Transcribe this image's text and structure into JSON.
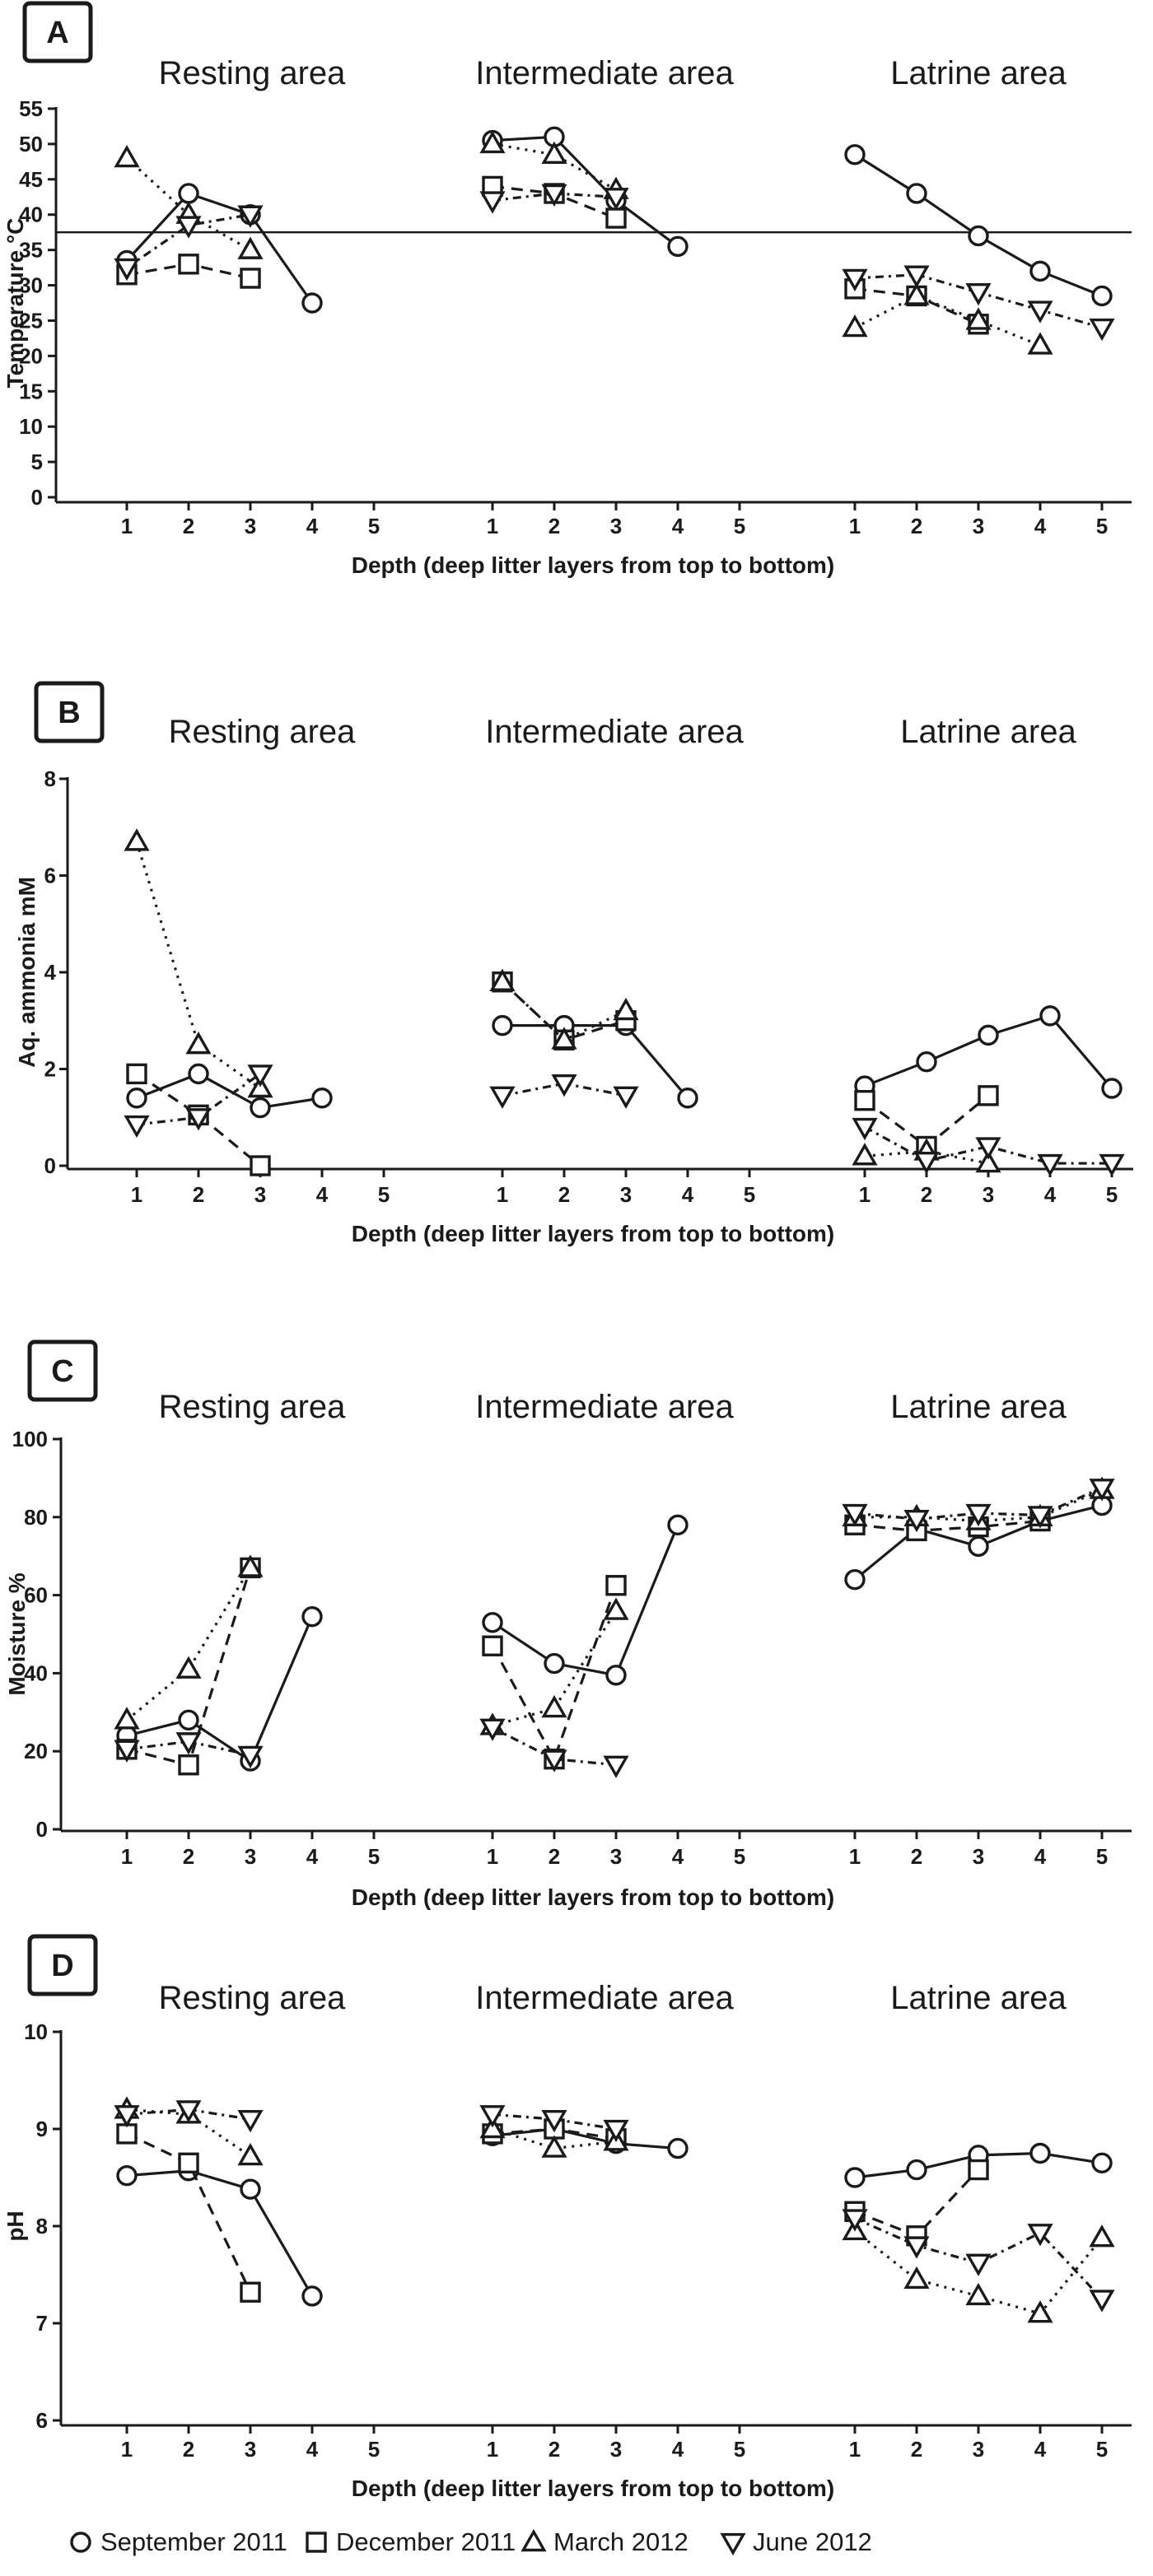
{
  "legend": [
    {
      "key": "sep",
      "label": "September 2011",
      "marker": "circle",
      "dash": ""
    },
    {
      "key": "dec",
      "label": "December 2011",
      "marker": "square",
      "dash": "14 9"
    },
    {
      "key": "mar",
      "label": "March 2012",
      "marker": "triangle-up",
      "dash": "3 7"
    },
    {
      "key": "jun",
      "label": "June 2012",
      "marker": "triangle-down",
      "dash": "10 6 3 6"
    }
  ],
  "chart_data": [
    {
      "type": "line",
      "panel": "A",
      "ylabel": "Temperature °C",
      "xlabel": "Depth (deep litter layers from top to bottom)",
      "ylim": [
        0,
        55
      ],
      "yticks": [
        0,
        5,
        10,
        15,
        20,
        25,
        30,
        35,
        40,
        45,
        50,
        55
      ],
      "reference_line": 37.5,
      "regions": [
        {
          "title": "Resting area",
          "x_ticks": [
            "1",
            "2",
            "3",
            "4",
            "5"
          ],
          "series": [
            {
              "name": "September 2011",
              "key": "sep",
              "x": [
                1,
                2,
                3,
                4
              ],
              "y": [
                33.5,
                43,
                40,
                27.5
              ]
            },
            {
              "name": "December 2011",
              "key": "dec",
              "x": [
                1,
                2,
                3
              ],
              "y": [
                31.5,
                33,
                31
              ]
            },
            {
              "name": "March 2012",
              "key": "mar",
              "x": [
                1,
                2,
                3
              ],
              "y": [
                48,
                40,
                35
              ]
            },
            {
              "name": "June 2012",
              "key": "jun",
              "x": [
                1,
                2,
                3
              ],
              "y": [
                32.5,
                38.5,
                40
              ]
            }
          ]
        },
        {
          "title": "Intermediate area",
          "x_ticks": [
            "1",
            "2",
            "3",
            "4",
            "5"
          ],
          "series": [
            {
              "name": "September 2011",
              "key": "sep",
              "x": [
                1,
                2,
                3,
                4
              ],
              "y": [
                50.5,
                51,
                42,
                35.5
              ]
            },
            {
              "name": "December 2011",
              "key": "dec",
              "x": [
                1,
                2,
                3
              ],
              "y": [
                44,
                43,
                39.5
              ]
            },
            {
              "name": "March 2012",
              "key": "mar",
              "x": [
                1,
                2,
                3
              ],
              "y": [
                50,
                48.5,
                43.5
              ]
            },
            {
              "name": "June 2012",
              "key": "jun",
              "x": [
                1,
                2,
                3
              ],
              "y": [
                42,
                43,
                42.5
              ]
            }
          ]
        },
        {
          "title": "Latrine area",
          "x_ticks": [
            "1",
            "2",
            "3",
            "4",
            "5"
          ],
          "series": [
            {
              "name": "September 2011",
              "key": "sep",
              "x": [
                1,
                2,
                3,
                4,
                5
              ],
              "y": [
                48.5,
                43,
                37,
                32,
                28.5
              ]
            },
            {
              "name": "December 2011",
              "key": "dec",
              "x": [
                1,
                2,
                3
              ],
              "y": [
                29.5,
                28.5,
                24.5
              ]
            },
            {
              "name": "March 2012",
              "key": "mar",
              "x": [
                1,
                2,
                3,
                4
              ],
              "y": [
                24,
                28.5,
                25,
                21.5
              ]
            },
            {
              "name": "June 2012",
              "key": "jun",
              "x": [
                1,
                2,
                3,
                4,
                5
              ],
              "y": [
                31,
                31.5,
                29,
                26.5,
                24
              ]
            }
          ]
        }
      ]
    },
    {
      "type": "line",
      "panel": "B",
      "ylabel": "Aq. ammonia mM",
      "xlabel": "Depth (deep litter layers from top to bottom)",
      "ylim": [
        0,
        8
      ],
      "yticks": [
        0,
        2,
        4,
        6,
        8
      ],
      "regions": [
        {
          "title": "Resting area",
          "x_ticks": [
            "1",
            "2",
            "3",
            "4",
            "5"
          ],
          "series": [
            {
              "name": "September 2011",
              "key": "sep",
              "x": [
                1,
                2,
                3,
                4
              ],
              "y": [
                1.4,
                1.9,
                1.2,
                1.4
              ]
            },
            {
              "name": "December 2011",
              "key": "dec",
              "x": [
                1,
                2,
                3
              ],
              "y": [
                1.9,
                1.05,
                0
              ]
            },
            {
              "name": "March 2012",
              "key": "mar",
              "x": [
                1,
                2,
                3
              ],
              "y": [
                6.7,
                2.5,
                1.6
              ]
            },
            {
              "name": "June 2012",
              "key": "jun",
              "x": [
                1,
                2,
                3
              ],
              "y": [
                0.85,
                1.0,
                1.9
              ]
            }
          ]
        },
        {
          "title": "Intermediate area",
          "x_ticks": [
            "1",
            "2",
            "3",
            "4",
            "5"
          ],
          "series": [
            {
              "name": "September 2011",
              "key": "sep",
              "x": [
                1,
                2,
                3,
                4
              ],
              "y": [
                2.9,
                2.9,
                2.9,
                1.4
              ]
            },
            {
              "name": "December 2011",
              "key": "dec",
              "x": [
                1,
                2,
                3
              ],
              "y": [
                3.8,
                2.6,
                3.0
              ]
            },
            {
              "name": "March 2012",
              "key": "mar",
              "x": [
                1,
                2,
                3
              ],
              "y": [
                3.8,
                2.6,
                3.2
              ]
            },
            {
              "name": "June 2012",
              "key": "jun",
              "x": [
                1,
                2,
                3
              ],
              "y": [
                1.45,
                1.7,
                1.45
              ]
            }
          ]
        },
        {
          "title": "Latrine area",
          "x_ticks": [
            "1",
            "2",
            "3",
            "4",
            "5"
          ],
          "series": [
            {
              "name": "September 2011",
              "key": "sep",
              "x": [
                1,
                2,
                3,
                4,
                5
              ],
              "y": [
                1.65,
                2.15,
                2.7,
                3.1,
                1.6
              ]
            },
            {
              "name": "December 2011",
              "key": "dec",
              "x": [
                1,
                2,
                3
              ],
              "y": [
                1.35,
                0.4,
                1.45
              ]
            },
            {
              "name": "March 2012",
              "key": "mar",
              "x": [
                1,
                2,
                3
              ],
              "y": [
                0.2,
                0.3,
                0.05
              ]
            },
            {
              "name": "June 2012",
              "key": "jun",
              "x": [
                1,
                2,
                3,
                4,
                5
              ],
              "y": [
                0.8,
                0.1,
                0.4,
                0.05,
                0.05
              ]
            }
          ]
        }
      ]
    },
    {
      "type": "line",
      "panel": "C",
      "ylabel": "Moisture %",
      "xlabel": "Depth (deep litter layers from top to bottom)",
      "ylim": [
        0,
        100
      ],
      "yticks": [
        0,
        20,
        40,
        60,
        80,
        100
      ],
      "regions": [
        {
          "title": "Resting area",
          "x_ticks": [
            "1",
            "2",
            "3",
            "4",
            "5"
          ],
          "series": [
            {
              "name": "September 2011",
              "key": "sep",
              "x": [
                1,
                2,
                3,
                4
              ],
              "y": [
                24,
                28,
                17.5,
                54.5
              ]
            },
            {
              "name": "December 2011",
              "key": "dec",
              "x": [
                1,
                2,
                3
              ],
              "y": [
                20.5,
                16.5,
                67
              ]
            },
            {
              "name": "March 2012",
              "key": "mar",
              "x": [
                1,
                2,
                3
              ],
              "y": [
                28,
                41,
                67
              ]
            },
            {
              "name": "June 2012",
              "key": "jun",
              "x": [
                1,
                2,
                3
              ],
              "y": [
                20.5,
                22.5,
                19
              ]
            }
          ]
        },
        {
          "title": "Intermediate area",
          "x_ticks": [
            "1",
            "2",
            "3",
            "4",
            "5"
          ],
          "series": [
            {
              "name": "September 2011",
              "key": "sep",
              "x": [
                1,
                2,
                3,
                4
              ],
              "y": [
                53,
                42.5,
                39.5,
                78
              ]
            },
            {
              "name": "December 2011",
              "key": "dec",
              "x": [
                1,
                2,
                3
              ],
              "y": [
                47,
                18,
                62.5
              ]
            },
            {
              "name": "March 2012",
              "key": "mar",
              "x": [
                1,
                2,
                3
              ],
              "y": [
                26.5,
                31,
                56
              ]
            },
            {
              "name": "June 2012",
              "key": "jun",
              "x": [
                1,
                2,
                3
              ],
              "y": [
                26,
                18,
                16.5
              ]
            }
          ]
        },
        {
          "title": "Latrine area",
          "x_ticks": [
            "1",
            "2",
            "3",
            "4",
            "5"
          ],
          "series": [
            {
              "name": "September 2011",
              "key": "sep",
              "x": [
                1,
                2,
                3,
                4,
                5
              ],
              "y": [
                64,
                77,
                72.5,
                79,
                83
              ]
            },
            {
              "name": "December 2011",
              "key": "dec",
              "x": [
                1,
                2,
                3,
                4
              ],
              "y": [
                78,
                76.5,
                77.5,
                79
              ]
            },
            {
              "name": "March 2012",
              "key": "mar",
              "x": [
                1,
                2,
                3,
                4,
                5
              ],
              "y": [
                80,
                80,
                79,
                80,
                87
              ]
            },
            {
              "name": "June 2012",
              "key": "jun",
              "x": [
                1,
                2,
                3,
                4,
                5
              ],
              "y": [
                81,
                79.5,
                81,
                80.5,
                87.5
              ]
            }
          ]
        }
      ]
    },
    {
      "type": "line",
      "panel": "D",
      "ylabel": "pH",
      "xlabel": "Depth (deep litter layers from top to bottom)",
      "ylim": [
        6,
        10
      ],
      "yticks": [
        6,
        7,
        8,
        9,
        10
      ],
      "regions": [
        {
          "title": "Resting area",
          "x_ticks": [
            "1",
            "2",
            "3",
            "4",
            "5"
          ],
          "series": [
            {
              "name": "September 2011",
              "key": "sep",
              "x": [
                1,
                2,
                3,
                4
              ],
              "y": [
                8.52,
                8.57,
                8.38,
                7.28
              ]
            },
            {
              "name": "December 2011",
              "key": "dec",
              "x": [
                1,
                2,
                3
              ],
              "y": [
                8.95,
                8.65,
                7.32
              ]
            },
            {
              "name": "March 2012",
              "key": "mar",
              "x": [
                1,
                2,
                3
              ],
              "y": [
                9.2,
                9.15,
                8.72
              ]
            },
            {
              "name": "June 2012",
              "key": "jun",
              "x": [
                1,
                2,
                3
              ],
              "y": [
                9.15,
                9.2,
                9.1
              ]
            }
          ]
        },
        {
          "title": "Intermediate area",
          "x_ticks": [
            "1",
            "2",
            "3",
            "4",
            "5"
          ],
          "series": [
            {
              "name": "September 2011",
              "key": "sep",
              "x": [
                1,
                2,
                3,
                4
              ],
              "y": [
                8.93,
                9.0,
                8.85,
                8.8
              ]
            },
            {
              "name": "December 2011",
              "key": "dec",
              "x": [
                1,
                2,
                3
              ],
              "y": [
                8.95,
                9.0,
                8.9
              ]
            },
            {
              "name": "March 2012",
              "key": "mar",
              "x": [
                1,
                2,
                3
              ],
              "y": [
                9.0,
                8.8,
                8.87
              ]
            },
            {
              "name": "June 2012",
              "key": "jun",
              "x": [
                1,
                2,
                3
              ],
              "y": [
                9.15,
                9.1,
                9.0
              ]
            }
          ]
        },
        {
          "title": "Latrine area",
          "x_ticks": [
            "1",
            "2",
            "3",
            "4",
            "5"
          ],
          "series": [
            {
              "name": "September 2011",
              "key": "sep",
              "x": [
                1,
                2,
                3,
                4,
                5
              ],
              "y": [
                8.5,
                8.58,
                8.73,
                8.75,
                8.65
              ]
            },
            {
              "name": "December 2011",
              "key": "dec",
              "x": [
                1,
                2,
                3
              ],
              "y": [
                8.15,
                7.9,
                8.58
              ]
            },
            {
              "name": "March 2012",
              "key": "mar",
              "x": [
                1,
                2,
                3,
                4,
                5
              ],
              "y": [
                7.95,
                7.45,
                7.28,
                7.1,
                7.88
              ]
            },
            {
              "name": "June 2012",
              "key": "jun",
              "x": [
                1,
                2,
                3,
                4,
                5
              ],
              "y": [
                8.08,
                7.8,
                7.62,
                7.93,
                7.25
              ]
            }
          ]
        }
      ]
    }
  ]
}
